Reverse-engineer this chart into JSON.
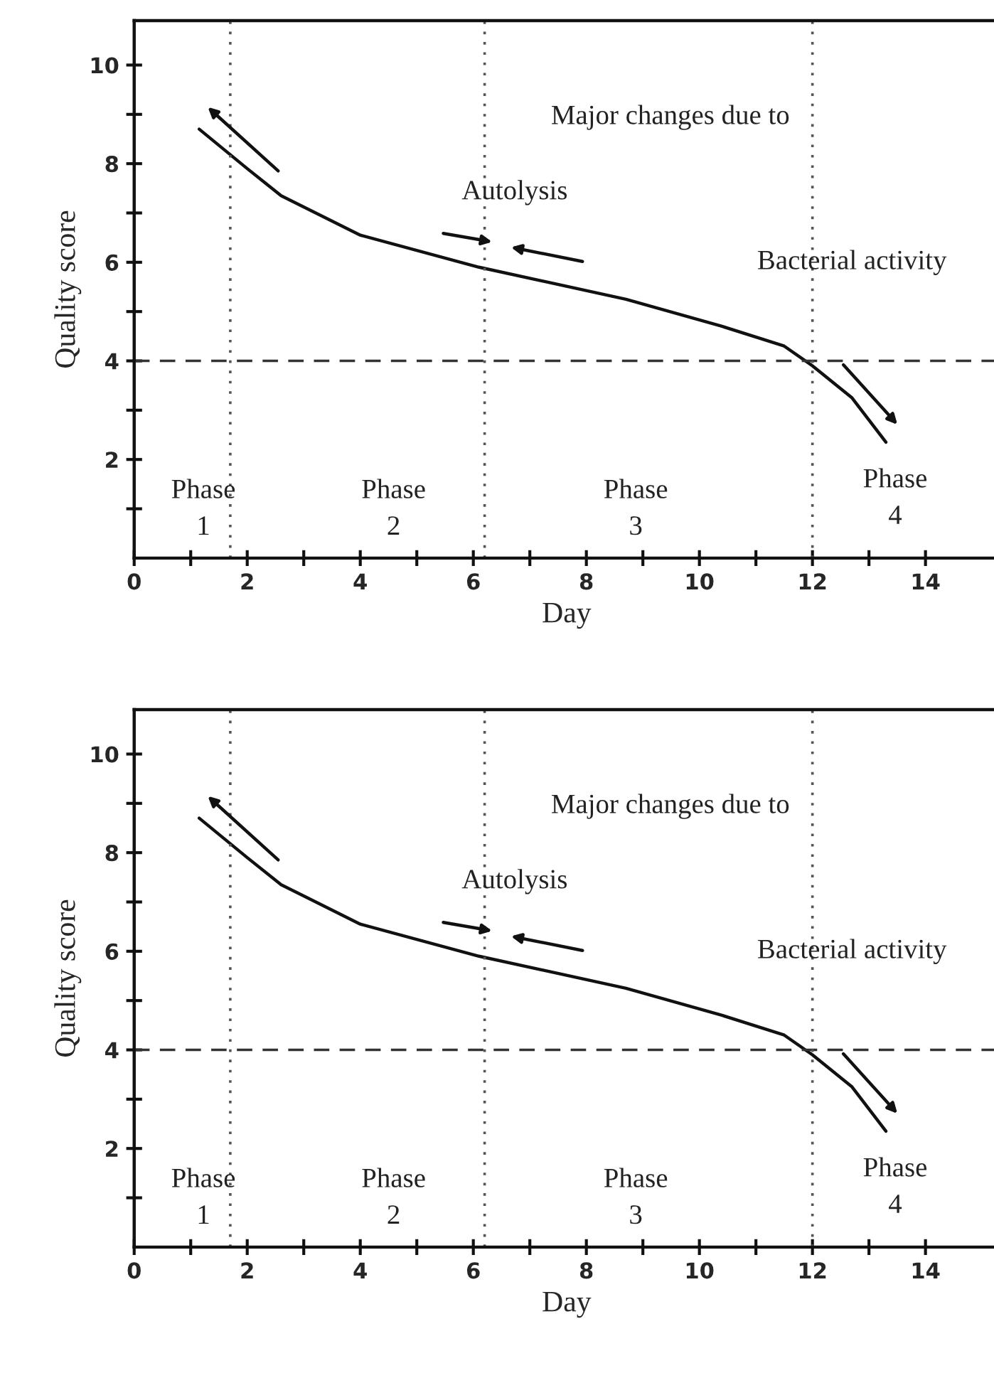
{
  "chart_data": [
    {
      "type": "line",
      "xlabel": "Day",
      "ylabel": "Quality score",
      "x": [
        1.15,
        2,
        2.6,
        4,
        6.1,
        8.7,
        10.4,
        11.5,
        12,
        12.7,
        13.3
      ],
      "series": [
        {
          "color": "#111111",
          "values": [
            8.7,
            7.9,
            7.35,
            6.55,
            5.9,
            5.25,
            4.7,
            4.3,
            3.9,
            3.25,
            2.35
          ]
        }
      ],
      "xlim": [
        0,
        15.3
      ],
      "ylim": [
        0,
        10.9
      ],
      "xticks": [
        0,
        {
          "value": 1,
          "label": null
        },
        2,
        {
          "value": 3,
          "label": null
        },
        4,
        {
          "value": 5,
          "label": null
        },
        6,
        {
          "value": 7,
          "label": null
        },
        8,
        {
          "value": 9,
          "label": null
        },
        10,
        {
          "value": 11,
          "label": null
        },
        12,
        {
          "value": 13,
          "label": null
        },
        14
      ],
      "yticks": [
        {
          "value": 1,
          "label": null
        },
        2,
        {
          "value": 3,
          "label": null
        },
        4,
        {
          "value": 5,
          "label": null
        },
        6,
        {
          "value": 7,
          "label": null
        },
        8,
        {
          "value": 9,
          "label": null
        },
        10
      ],
      "ref_lines": [
        {
          "axis": "y",
          "value": 4,
          "line_style": "dashed",
          "color": "#333333"
        },
        {
          "axis": "x",
          "value": 1.7,
          "line_style": "dotted",
          "color": "#555555"
        },
        {
          "axis": "x",
          "value": 6.2,
          "line_style": "dotted",
          "color": "#555555"
        },
        {
          "axis": "x",
          "value": 12,
          "line_style": "dotted",
          "color": "#555555"
        }
      ],
      "annotations": [
        "Major changes due to",
        "Autolysis",
        "Bacterial activity",
        "Phase\n1",
        "Phase\n2",
        "Phase\n3",
        "Phase\n4"
      ],
      "grid": false,
      "marker": "none",
      "line_style": "solid",
      "legend": false
    },
    {
      "type": "line",
      "xlabel": "Day",
      "ylabel": "Quality score",
      "x": [
        1.15,
        2,
        2.6,
        4,
        6.1,
        8.7,
        10.4,
        11.5,
        12,
        12.7,
        13.3
      ],
      "series": [
        {
          "color": "#111111",
          "values": [
            8.7,
            7.9,
            7.35,
            6.55,
            5.9,
            5.25,
            4.7,
            4.3,
            3.9,
            3.25,
            2.35
          ]
        }
      ],
      "xlim": [
        0,
        15.3
      ],
      "ylim": [
        0,
        10.9
      ],
      "xticks": [
        0,
        {
          "value": 1,
          "label": null
        },
        2,
        {
          "value": 3,
          "label": null
        },
        4,
        {
          "value": 5,
          "label": null
        },
        6,
        {
          "value": 7,
          "label": null
        },
        8,
        {
          "value": 9,
          "label": null
        },
        10,
        {
          "value": 11,
          "label": null
        },
        12,
        {
          "value": 13,
          "label": null
        },
        14
      ],
      "yticks": [
        {
          "value": 1,
          "label": null
        },
        2,
        {
          "value": 3,
          "label": null
        },
        4,
        {
          "value": 5,
          "label": null
        },
        6,
        {
          "value": 7,
          "label": null
        },
        8,
        {
          "value": 9,
          "label": null
        },
        10
      ],
      "ref_lines": [
        {
          "axis": "y",
          "value": 4,
          "line_style": "dashed",
          "color": "#333333"
        },
        {
          "axis": "x",
          "value": 1.7,
          "line_style": "dotted",
          "color": "#555555"
        },
        {
          "axis": "x",
          "value": 6.2,
          "line_style": "dotted",
          "color": "#555555"
        },
        {
          "axis": "x",
          "value": 12,
          "line_style": "dotted",
          "color": "#555555"
        }
      ],
      "annotations": [
        "Major changes due to",
        "Autolysis",
        "Bacterial activity",
        "Phase\n1",
        "Phase\n2",
        "Phase\n3",
        "Phase\n4"
      ],
      "grid": false,
      "marker": "none",
      "line_style": "solid",
      "legend": false
    }
  ]
}
